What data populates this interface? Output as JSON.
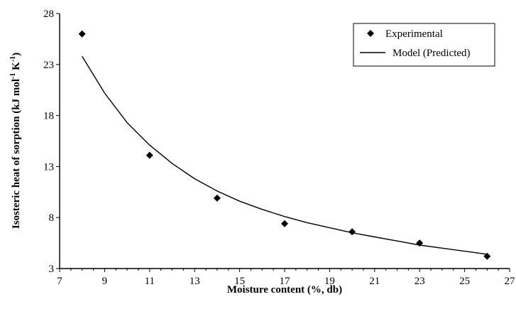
{
  "chart_data": {
    "type": "scatter",
    "xlabel": "Moisture content (%, db)",
    "ylabel_parts": {
      "main": "Isosteric heat of sorption (kJ mol",
      "sup1": "-1",
      "mid": " K",
      "sup2": "-1",
      "end": ")"
    },
    "xlim": [
      7,
      27
    ],
    "ylim": [
      3,
      28
    ],
    "xticks": [
      7,
      9,
      11,
      13,
      15,
      17,
      19,
      21,
      23,
      25,
      27
    ],
    "yticks": [
      3,
      8,
      13,
      18,
      23,
      28
    ],
    "legend_position": "top-right",
    "grid": false,
    "series": [
      {
        "name": "Experimental",
        "kind": "scatter",
        "marker": "diamond",
        "x": [
          8,
          11,
          14,
          17,
          20,
          23,
          26
        ],
        "y": [
          26,
          14.1,
          9.9,
          7.4,
          6.6,
          5.5,
          4.2
        ]
      },
      {
        "name": "Model (Predicted)",
        "kind": "line",
        "x": [
          8,
          9,
          10,
          11,
          12,
          13,
          14,
          15,
          16,
          17,
          18,
          19,
          20,
          21,
          22,
          23,
          24,
          25,
          26
        ],
        "y": [
          23.8,
          20.2,
          17.3,
          15.1,
          13.3,
          11.8,
          10.6,
          9.6,
          8.8,
          8.1,
          7.5,
          7.0,
          6.5,
          6.1,
          5.7,
          5.3,
          5.0,
          4.7,
          4.4
        ]
      }
    ]
  }
}
